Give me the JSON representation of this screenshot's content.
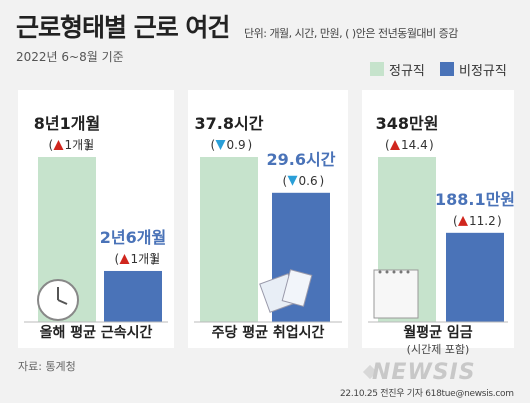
{
  "title": "근로형태별 근로 여건",
  "unit_note": "단위: 개월, 시간, 만원, ( )안은 전년동월대비 증감",
  "subtitle": "2022년 6~8월 기준",
  "legend": [
    {
      "label": "정규직",
      "color": "#c6e3cc"
    },
    {
      "label": "비정규직",
      "color": "#4a73b8"
    }
  ],
  "colors": {
    "regular": "#c6e3cc",
    "nonregular": "#4a73b8",
    "up": "#d0261e",
    "down": "#2a9fd8",
    "nonregular_text": "#4a73b8"
  },
  "chart_data": {
    "type": "bar",
    "groups": [
      {
        "category": "올해 평균 근속시간",
        "sublabel": "",
        "regular": {
          "value": 97,
          "label": "8년1개월",
          "change_label": "1개월",
          "change_dir": "up"
        },
        "nonregular": {
          "value": 30,
          "label": "2년6개월",
          "change_label": "1개월",
          "change_dir": "up"
        }
      },
      {
        "category": "주당 평균 취업시간",
        "sublabel": "",
        "regular": {
          "value": 37.8,
          "label": "37.8시간",
          "change_label": "0.9",
          "change_dir": "down"
        },
        "nonregular": {
          "value": 29.6,
          "label": "29.6시간",
          "change_label": "0.6",
          "change_dir": "down"
        }
      },
      {
        "category": "월평균 임금",
        "sublabel": "(시간제 포함)",
        "regular": {
          "value": 348,
          "label": "348만원",
          "change_label": "14.4",
          "change_dir": "up"
        },
        "nonregular": {
          "value": 188.1,
          "label": "188.1만원",
          "change_label": "11.2",
          "change_dir": "up"
        }
      }
    ]
  },
  "source": "자료: 통계청",
  "credit": "22.10.25 전진우 기자 618tue@newsis.com",
  "watermark": "NEWSIS"
}
